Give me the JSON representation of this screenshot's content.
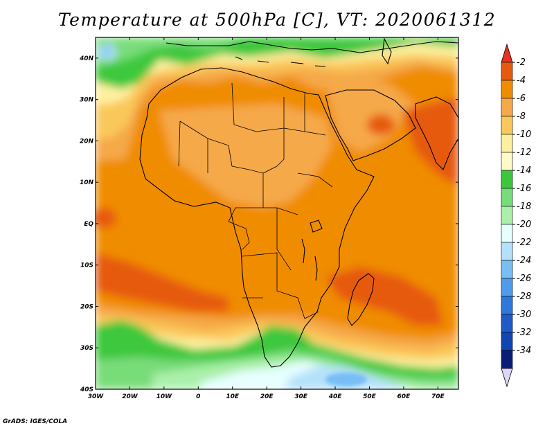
{
  "title": "Temperature at 500hPa [C], VT: 2020061312",
  "credit": "GrADS: IGES/COLA",
  "map": {
    "lon_range": [
      -30,
      76
    ],
    "lat_range": [
      -40,
      45
    ],
    "lon_ticks": [
      {
        "value": -30,
        "label": "30W"
      },
      {
        "value": -20,
        "label": "20W"
      },
      {
        "value": -10,
        "label": "10W"
      },
      {
        "value": 0,
        "label": "0"
      },
      {
        "value": 10,
        "label": "10E"
      },
      {
        "value": 20,
        "label": "20E"
      },
      {
        "value": 30,
        "label": "30E"
      },
      {
        "value": 40,
        "label": "40E"
      },
      {
        "value": 50,
        "label": "50E"
      },
      {
        "value": 60,
        "label": "60E"
      },
      {
        "value": 70,
        "label": "70E"
      }
    ],
    "lat_ticks": [
      {
        "value": 40,
        "label": "40N"
      },
      {
        "value": 30,
        "label": "30N"
      },
      {
        "value": 20,
        "label": "20N"
      },
      {
        "value": 10,
        "label": "10N"
      },
      {
        "value": 0,
        "label": "EQ"
      },
      {
        "value": -10,
        "label": "10S"
      },
      {
        "value": -20,
        "label": "20S"
      },
      {
        "value": -30,
        "label": "30S"
      },
      {
        "value": -40,
        "label": "40S"
      }
    ]
  },
  "colorbar": {
    "levels": [
      "-2",
      "-4",
      "-6",
      "-8",
      "-10",
      "-12",
      "-14",
      "-16",
      "-18",
      "-20",
      "-22",
      "-24",
      "-26",
      "-28",
      "-30",
      "-32",
      "-34"
    ],
    "colors": [
      "#e65a0f",
      "#f08c00",
      "#f5a94a",
      "#fac85a",
      "#fff0a0",
      "#fffac8",
      "#3cc83c",
      "#78dc78",
      "#aaf0aa",
      "#e6ffff",
      "#b4e1fa",
      "#78bef5",
      "#509beb",
      "#2d78dc",
      "#1e5ac8",
      "#0f46b4",
      "#0a1e78"
    ],
    "top_color": "#e6321e",
    "bottom_color": "#dcd7fa"
  },
  "field_colors": {
    "very_warm": "#e65a0f",
    "warm": "#f08c00",
    "mild": "#f5a94a",
    "cool": "#fac85a",
    "cooler": "#fff0a0",
    "green": "#3cc83c",
    "light_green": "#78dc78",
    "pale_green": "#aaf0aa",
    "pale_cyan": "#e6ffff",
    "light_blue": "#b4e1fa",
    "blue": "#78bef5"
  }
}
